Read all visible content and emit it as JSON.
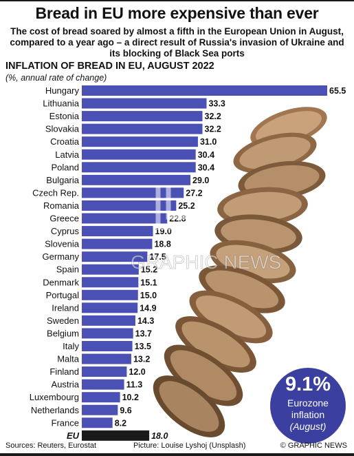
{
  "title": "Bread in EU more expensive than ever",
  "subtitle": "The cost of bread soared by almost a fifth in the European Union in August, compared to a year ago – a direct result of Russia's invasion of Ukraine and its blocking of Black Sea ports",
  "colors": {
    "bar": "#4b50b5",
    "eu_bar": "#1a1a1a",
    "badge": "#3a3fa0"
  },
  "chart_data": {
    "type": "bar",
    "orientation": "horizontal",
    "title": "INFLATION OF BREAD IN EU, AUGUST 2022",
    "unit": "(%, annual rate of change)",
    "categories": [
      "Hungary",
      "Lithuania",
      "Estonia",
      "Slovakia",
      "Croatia",
      "Latvia",
      "Poland",
      "Bulgaria",
      "Czech Rep.",
      "Romania",
      "Greece",
      "Cyprus",
      "Slovenia",
      "Germany",
      "Spain",
      "Denmark",
      "Portugal",
      "Ireland",
      "Sweden",
      "Belgium",
      "Italy",
      "Malta",
      "Finland",
      "Austria",
      "Luxembourg",
      "Netherlands",
      "France"
    ],
    "values": [
      65.5,
      33.3,
      32.2,
      32.2,
      31.0,
      30.4,
      30.4,
      29.0,
      27.2,
      25.2,
      22.8,
      19.0,
      18.8,
      17.5,
      15.2,
      15.1,
      15.0,
      14.9,
      14.3,
      13.7,
      13.5,
      13.2,
      12.0,
      11.3,
      10.2,
      9.6,
      8.2
    ],
    "value_labels": [
      "65.5",
      "33.3",
      "32.2",
      "32.2",
      "31.0",
      "30.4",
      "30.4",
      "29.0",
      "27.2",
      "25.2",
      "22.8",
      "19.0",
      "18.8",
      "17.5",
      "15.2",
      "15.1",
      "15.0",
      "14.9",
      "14.3",
      "13.7",
      "13.5",
      "13.2",
      "12.0",
      "11.3",
      "10.2",
      "9.6",
      "8.2"
    ],
    "total": {
      "label": "EU",
      "value": 18.0,
      "value_label": "18.0"
    },
    "xlim": [
      0,
      65.5
    ],
    "grid": false,
    "legend": "none"
  },
  "badge": {
    "value": "9.1%",
    "line1": "Eurozone",
    "line2": "inflation",
    "line3": "(August)"
  },
  "footer": {
    "sources": "Sources: Reuters, Eurostat",
    "picture": "Picture: Louise Lyshoj (Unsplash)",
    "brand": "© GRAPHIC NEWS"
  },
  "watermark": "GRAPHIC NEWS"
}
